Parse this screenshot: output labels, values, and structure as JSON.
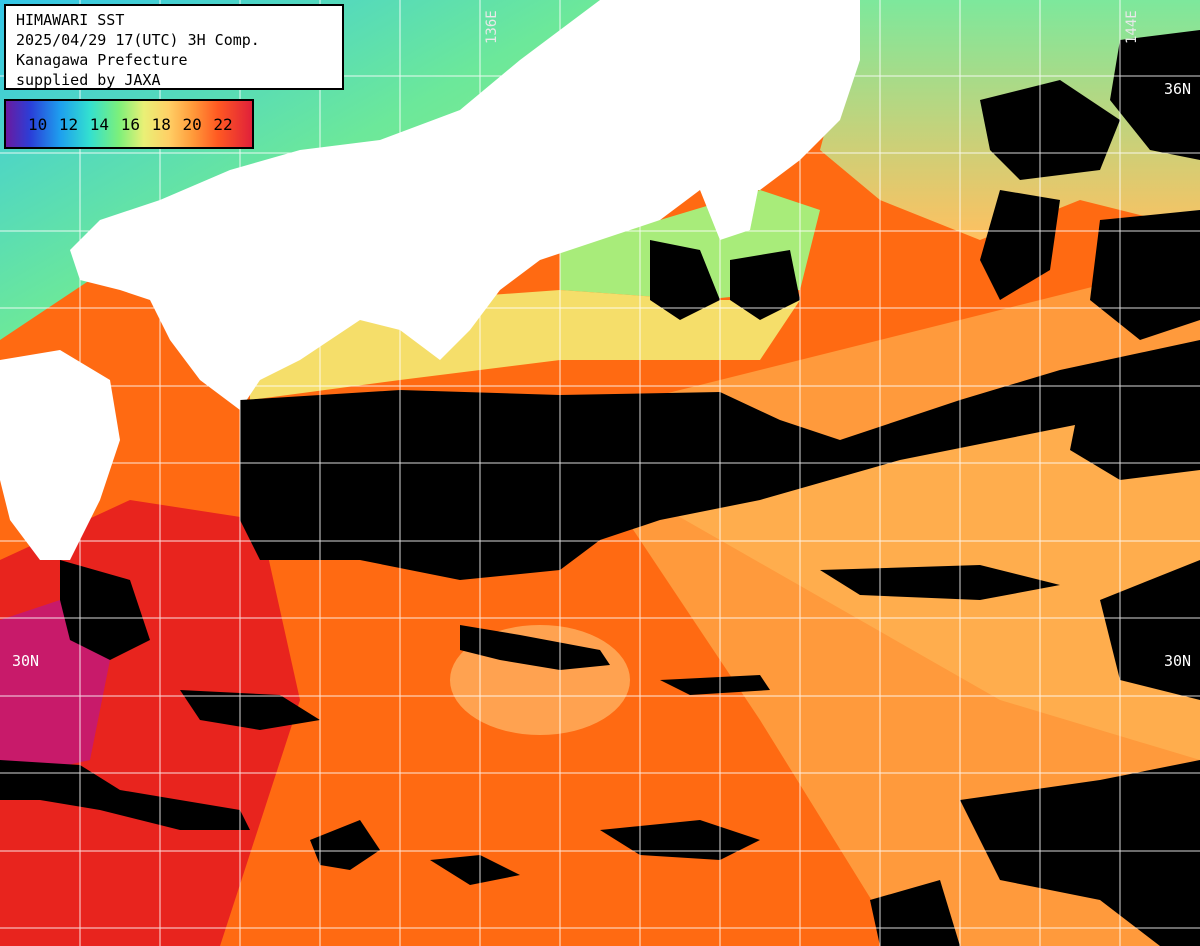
{
  "header": {
    "line1": "HIMAWARI SST",
    "line2": "2025/04/29 17(UTC) 3H Comp.",
    "line3": "Kanagawa Prefecture",
    "line4": "supplied by JAXA"
  },
  "legend": {
    "labels": "10 12 14 16 18 20 22",
    "values": [
      10,
      12,
      14,
      16,
      18,
      20,
      22
    ],
    "unit": "",
    "colors": [
      "#6a1aa0",
      "#1e9fee",
      "#33e0d0",
      "#7df07a",
      "#e9f076",
      "#ff9a3a",
      "#e0203a"
    ]
  },
  "grid_labels": {
    "lon_136": "136E",
    "lon_144": "144E",
    "lat_36_right": "36N",
    "lat_30_left": "30N",
    "lat_30_right": "30N"
  },
  "colors": {
    "land": "#ffffff",
    "no_data": "#000000",
    "grid": "#ffffff",
    "warm": "#ff6a10",
    "hot": "#e0203a",
    "cool": "#7df07a",
    "cold": "#33e0d0"
  }
}
